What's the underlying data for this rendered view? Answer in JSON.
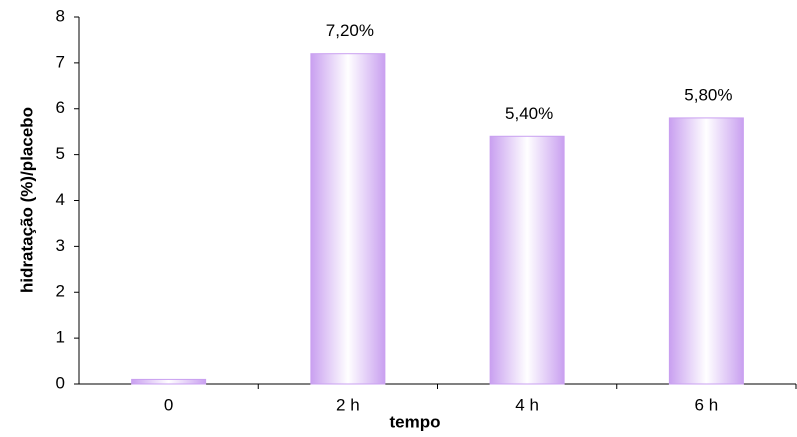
{
  "chart_data": {
    "type": "bar",
    "x_label": "tempo",
    "y_label": "hidratação (%)/placebo",
    "categories": [
      "0",
      "2 h",
      "4 h",
      "6 h"
    ],
    "values": [
      0.1,
      7.2,
      5.4,
      5.8
    ],
    "value_labels": [
      null,
      "7,20%",
      "5,40%",
      "5,80%"
    ],
    "color": "#c9a0f0",
    "ylim": [
      0,
      8
    ],
    "yticks": [
      0,
      1,
      2,
      3,
      4,
      5,
      6,
      7,
      8
    ],
    "grid": false
  }
}
